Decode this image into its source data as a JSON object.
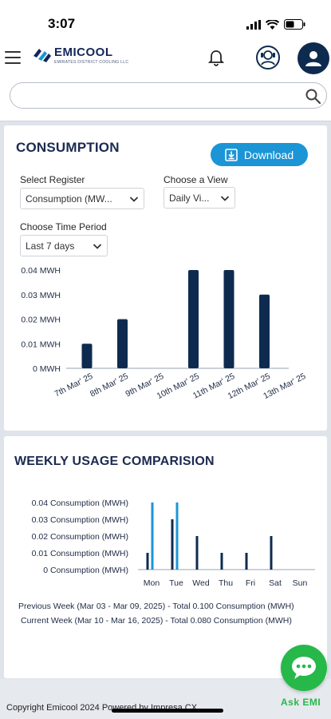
{
  "status_bar": {
    "time": "3:07"
  },
  "header": {
    "brand_name": "EMICOOL",
    "brand_tagline": "EMIRATES DISTRICT COOLING LLC",
    "search_placeholder": "",
    "icons": [
      "menu-icon",
      "bell-icon",
      "support-agent-icon",
      "user-icon",
      "search-icon"
    ]
  },
  "consumption_card": {
    "title": "CONSUMPTION",
    "download_label": "Download",
    "register_label": "Select Register",
    "register_value": "Consumption (MW...",
    "view_label": "Choose a View",
    "view_value": "Daily Vi...",
    "period_label": "Choose Time Period",
    "period_value": "Last 7 days"
  },
  "weekly_card": {
    "title": "WEEKLY USAGE COMPARISION",
    "legend_previous": "Previous Week (Mar 03 - Mar 09, 2025) - Total 0.100 Consumption (MWH)",
    "legend_current": "Current Week (Mar 10 - Mar 16, 2025) - Total 0.080 Consumption (MWH)"
  },
  "footer": {
    "copyright": "Copyright Emicool 2024 Powered by Impresa CX",
    "ask_label": "Ask EMI"
  },
  "colors": {
    "navy": "#0e2b4f",
    "accent_blue": "#1b95d6",
    "chat_green": "#27b84a"
  },
  "chart_data": [
    {
      "type": "bar",
      "categories": [
        "7th Mar' 25",
        "8th Mar' 25",
        "9th Mar' 25",
        "10th Mar' 25",
        "11th Mar' 25",
        "12th Mar' 25",
        "13th Mar' 25"
      ],
      "values": [
        0.01,
        0.02,
        0,
        0.04,
        0.04,
        0.03,
        0
      ],
      "yticks": [
        "0 MWH",
        "0.01 MWH",
        "0.02 MWH",
        "0.03 MWH",
        "0.04 MWH"
      ],
      "ylim": [
        0,
        0.04
      ],
      "grid": false,
      "color": "#0e2b4f"
    },
    {
      "type": "bar",
      "categories": [
        "Mon",
        "Tue",
        "Wed",
        "Thu",
        "Fri",
        "Sat",
        "Sun"
      ],
      "series": [
        {
          "values": [
            0.01,
            0.03,
            0.02,
            0.01,
            0.01,
            0.02,
            0
          ],
          "color": "#0e2b4f"
        },
        {
          "values": [
            0.04,
            0.04,
            0,
            0,
            0,
            0,
            0
          ],
          "color": "#1b95d6"
        }
      ],
      "yticks": [
        "0 Consumption (MWH)",
        "0.01 Consumption (MWH)",
        "0.02 Consumption (MWH)",
        "0.03 Consumption (MWH)",
        "0.04 Consumption (MWH)"
      ],
      "ylim": [
        0,
        0.04
      ],
      "grid": false
    }
  ]
}
